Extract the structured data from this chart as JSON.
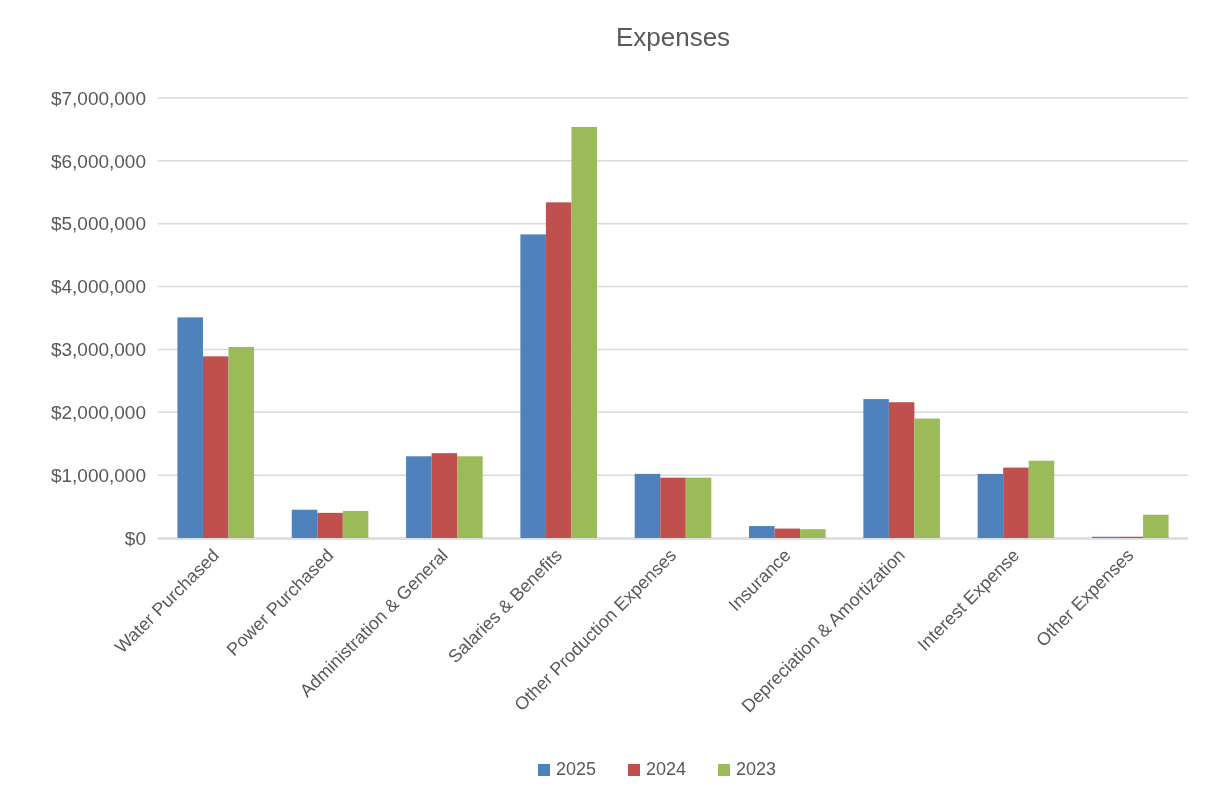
{
  "chart_data": {
    "type": "bar",
    "title": "Expenses",
    "categories": [
      "Water Purchased",
      "Power Purchased",
      "Administration & General",
      "Salaries & Benefits",
      "Other Production Expenses",
      "Insurance",
      "Depreciation & Amortization",
      "Interest Expense",
      "Other Expenses"
    ],
    "series": [
      {
        "name": "2025",
        "color": "#4f81bd",
        "values": [
          3510000,
          450000,
          1300000,
          4830000,
          1020000,
          190000,
          2210000,
          1020000,
          20000
        ]
      },
      {
        "name": "2024",
        "color": "#c0504d",
        "values": [
          2890000,
          400000,
          1350000,
          5340000,
          960000,
          150000,
          2160000,
          1120000,
          20000
        ]
      },
      {
        "name": "2023",
        "color": "#9bbb59",
        "values": [
          3040000,
          430000,
          1300000,
          6540000,
          960000,
          140000,
          1900000,
          1230000,
          370000
        ]
      }
    ],
    "ylim": [
      0,
      7000000
    ],
    "yticks": [
      {
        "value": 0,
        "label": "$0"
      },
      {
        "value": 1000000,
        "label": "$1,000,000"
      },
      {
        "value": 2000000,
        "label": "$2,000,000"
      },
      {
        "value": 3000000,
        "label": "$3,000,000"
      },
      {
        "value": 4000000,
        "label": "$4,000,000"
      },
      {
        "value": 5000000,
        "label": "$5,000,000"
      },
      {
        "value": 6000000,
        "label": "$6,000,000"
      },
      {
        "value": 7000000,
        "label": "$7,000,000"
      }
    ],
    "grid": true,
    "legend": "bottom"
  }
}
